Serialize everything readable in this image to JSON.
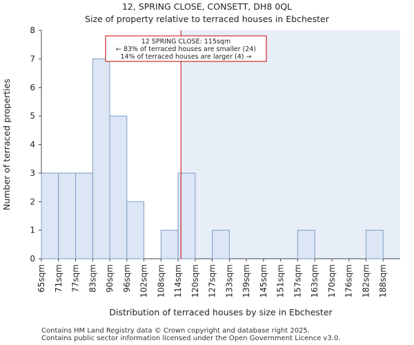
{
  "title_line1": "12, SPRING CLOSE, CONSETT, DH8 0QL",
  "title_line2": "Size of property relative to terraced houses in Ebchester",
  "footer_line1": "Contains HM Land Registry data © Crown copyright and database right 2025.",
  "footer_line2": "Contains public sector information licensed under the Open Government Licence v3.0.",
  "colors": {
    "bar_fill": "#dce6f5",
    "bar_stroke": "#7a9cc6",
    "highlight_fill": "#e8eef8",
    "marker": "#cc0000",
    "annotation_border": "#cc0000"
  },
  "chart_data": {
    "type": "bar",
    "categories": [
      "65sqm",
      "71sqm",
      "77sqm",
      "83sqm",
      "90sqm",
      "96sqm",
      "102sqm",
      "108sqm",
      "114sqm",
      "120sqm",
      "127sqm",
      "133sqm",
      "139sqm",
      "145sqm",
      "151sqm",
      "157sqm",
      "163sqm",
      "170sqm",
      "176sqm",
      "182sqm",
      "188sqm"
    ],
    "values": [
      3,
      3,
      3,
      7,
      5,
      2,
      0,
      1,
      3,
      0,
      1,
      0,
      0,
      0,
      0,
      1,
      0,
      0,
      0,
      1,
      0
    ],
    "xlabel": "Distribution of terraced houses by size in Ebchester",
    "ylabel": "Number of terraced properties",
    "ylim": [
      0,
      8
    ],
    "yticks": [
      0,
      1,
      2,
      3,
      4,
      5,
      6,
      7,
      8
    ],
    "marker_value": 115,
    "annotation": {
      "line1": "12 SPRING CLOSE: 115sqm",
      "line2": "← 83% of terraced houses are smaller (24)",
      "line3": "14% of terraced houses are larger (4) →"
    }
  }
}
